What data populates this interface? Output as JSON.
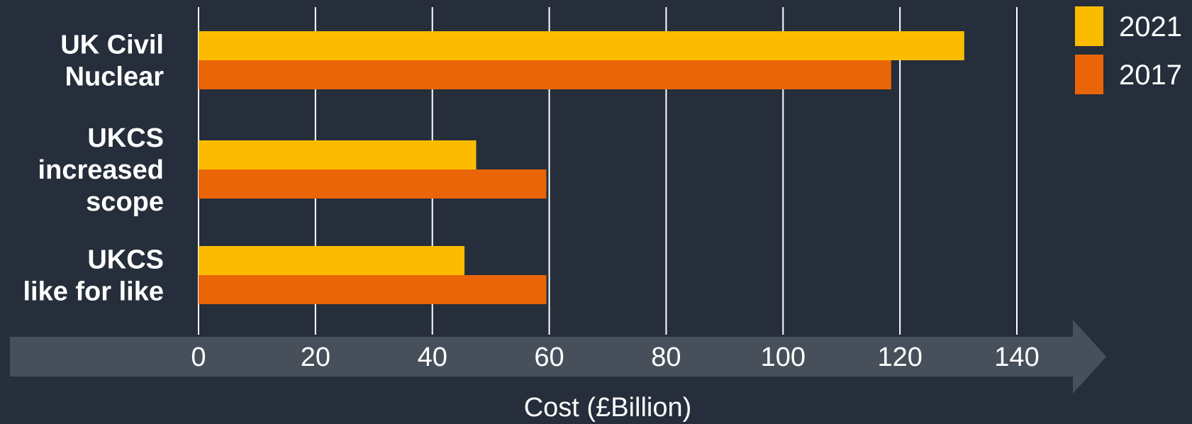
{
  "chart_data": {
    "type": "bar",
    "orientation": "horizontal",
    "categories": [
      [
        "UK Civil",
        "Nuclear"
      ],
      [
        "UKCS",
        "increased",
        "scope"
      ],
      [
        "UKCS",
        "like for like"
      ]
    ],
    "series": [
      {
        "name": "2021",
        "color": "#fbbc00",
        "values": [
          131,
          47.5,
          45.5
        ]
      },
      {
        "name": "2017",
        "color": "#ea6508",
        "values": [
          118.5,
          59.5,
          59.5
        ]
      }
    ],
    "xlabel": "Cost (£Billion)",
    "ylabel": "",
    "xlim": [
      0,
      140
    ],
    "xticks": [
      0,
      20,
      40,
      60,
      80,
      100,
      120,
      140
    ],
    "grid": "vertical",
    "legend_position": "top-right",
    "axis_style": "arrow"
  },
  "colors": {
    "background": "#252e3a",
    "gridline": "#ffffff",
    "axis_arrow": "#47505a"
  }
}
